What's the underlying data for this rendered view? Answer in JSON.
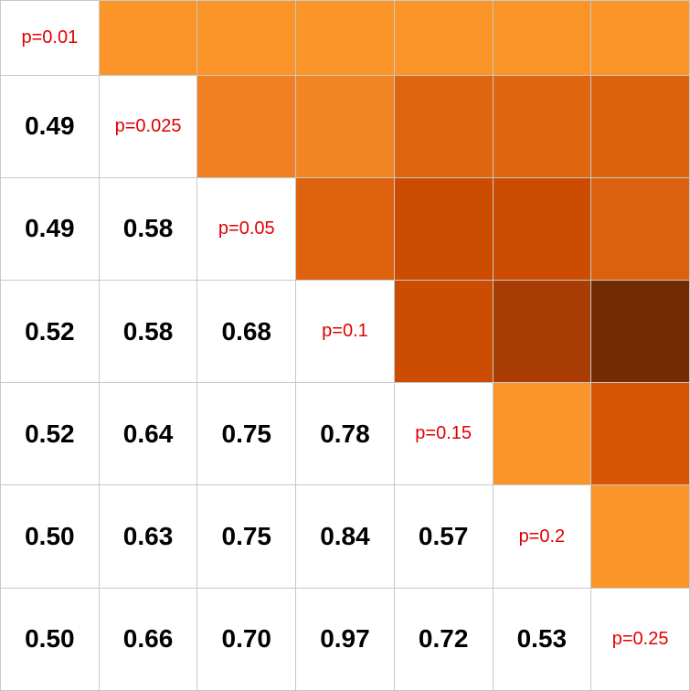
{
  "chart_data": {
    "type": "heatmap",
    "title": "",
    "xlabel": "",
    "ylabel": "",
    "grid": true,
    "diagonal_labels": [
      "p=0.01",
      "p=0.025",
      "p=0.05",
      "p=0.1",
      "p=0.15",
      "p=0.2",
      "p=0.25"
    ],
    "lower_triangle": [
      [
        null,
        null,
        null,
        null,
        null,
        null,
        null
      ],
      [
        "0.49",
        null,
        null,
        null,
        null,
        null,
        null
      ],
      [
        "0.49",
        "0.58",
        null,
        null,
        null,
        null,
        null
      ],
      [
        "0.52",
        "0.58",
        "0.68",
        null,
        null,
        null,
        null
      ],
      [
        "0.52",
        "0.64",
        "0.75",
        "0.78",
        null,
        null,
        null
      ],
      [
        "0.50",
        "0.63",
        "0.75",
        "0.84",
        "0.57",
        null,
        null
      ],
      [
        "0.50",
        "0.66",
        "0.70",
        "0.97",
        "0.72",
        "0.53",
        null
      ]
    ],
    "upper_triangle_colors": [
      [
        null,
        "#fb9529",
        "#fb9529",
        "#fb9529",
        "#fb9529",
        "#fb9529",
        "#fb9529"
      ],
      [
        null,
        null,
        "#f08022",
        "#f38624",
        "#e0650f",
        "#e0650f",
        "#dd620e"
      ],
      [
        null,
        null,
        null,
        "#df630e",
        "#cc4c02",
        "#cc4c02",
        "#dc610e"
      ],
      [
        null,
        null,
        null,
        null,
        "#cc4c02",
        "#a93c04",
        "#732b06"
      ],
      [
        null,
        null,
        null,
        null,
        null,
        "#fb9529",
        "#d55405"
      ],
      [
        null,
        null,
        null,
        null,
        null,
        null,
        "#fb9529"
      ],
      [
        null,
        null,
        null,
        null,
        null,
        null,
        null
      ]
    ],
    "colors": {
      "value_text": "#000000",
      "diagonal_text": "#e00000",
      "grid_line": "#c8c8c8",
      "empty_cell": "#ffffff"
    }
  }
}
